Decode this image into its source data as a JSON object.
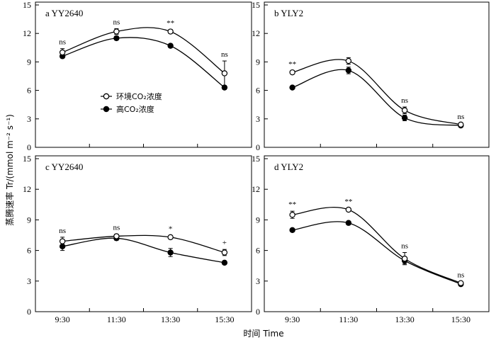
{
  "figure": {
    "ylabel": "蒸腾速率 Tr/(mmol m⁻² s⁻¹)",
    "xlabel": "时间 Time"
  },
  "legend": {
    "items": [
      {
        "label": "环境CO₂浓度",
        "marker": "open-circle"
      },
      {
        "label": "高CO₂浓度",
        "marker": "filled-circle"
      }
    ]
  },
  "colors": {
    "line": "#000000",
    "background": "#ffffff"
  },
  "chart_data": [
    {
      "type": "line",
      "panel": "a",
      "title": "a  YY2640",
      "categories": [
        "9:30",
        "11:30",
        "13:30",
        "15:30"
      ],
      "series": [
        {
          "name": "环境CO₂浓度",
          "values": [
            10.0,
            12.2,
            12.2,
            7.8
          ],
          "errors": [
            0.4,
            0.3,
            0.2,
            1.3
          ]
        },
        {
          "name": "高CO₂浓度",
          "values": [
            9.6,
            11.5,
            10.7,
            6.3
          ],
          "errors": [
            0.2,
            0.2,
            0.2,
            0.2
          ]
        }
      ],
      "significance": [
        "ns",
        "ns",
        "**",
        "ns"
      ],
      "ylim": [
        0,
        15
      ],
      "yticks": [
        0,
        3,
        6,
        9,
        12,
        15
      ],
      "legend": "center-left"
    },
    {
      "type": "line",
      "panel": "b",
      "title": "b  YLY2",
      "categories": [
        "9:30",
        "11:30",
        "13:30",
        "15:30"
      ],
      "series": [
        {
          "name": "环境CO₂浓度",
          "values": [
            7.9,
            9.1,
            3.9,
            2.4
          ],
          "errors": [
            0.15,
            0.35,
            0.35,
            0.15
          ]
        },
        {
          "name": "高CO₂浓度",
          "values": [
            6.3,
            8.1,
            3.1,
            2.3
          ],
          "errors": [
            0.15,
            0.35,
            0.3,
            0.1
          ]
        }
      ],
      "significance": [
        "**",
        "",
        "ns",
        "ns"
      ],
      "ylim": [
        0,
        15
      ],
      "yticks": [
        0,
        3,
        6,
        9,
        12,
        15
      ]
    },
    {
      "type": "line",
      "panel": "c",
      "title": "c  YY2640",
      "categories": [
        "9:30",
        "11:30",
        "13:30",
        "15:30"
      ],
      "series": [
        {
          "name": "环境CO₂浓度",
          "values": [
            6.9,
            7.4,
            7.3,
            5.8
          ],
          "errors": [
            0.4,
            0.2,
            0.15,
            0.3
          ]
        },
        {
          "name": "高CO₂浓度",
          "values": [
            6.4,
            7.2,
            5.8,
            4.8
          ],
          "errors": [
            0.4,
            0.2,
            0.4,
            0.1
          ]
        }
      ],
      "significance": [
        "ns",
        "ns",
        "*",
        "+"
      ],
      "ylim": [
        0,
        15
      ],
      "yticks": [
        0,
        3,
        6,
        9,
        12,
        15
      ]
    },
    {
      "type": "line",
      "panel": "d",
      "title": "d  YLY2",
      "categories": [
        "9:30",
        "11:30",
        "13:30",
        "15:30"
      ],
      "series": [
        {
          "name": "环境CO₂浓度",
          "values": [
            9.5,
            10.0,
            5.2,
            2.8
          ],
          "errors": [
            0.35,
            0.15,
            0.6,
            0.15
          ]
        },
        {
          "name": "高CO₂浓度",
          "values": [
            8.0,
            8.7,
            5.0,
            2.7
          ],
          "errors": [
            0.1,
            0.15,
            0.3,
            0.15
          ]
        }
      ],
      "significance": [
        "**",
        "**",
        "ns",
        "ns"
      ],
      "ylim": [
        0,
        15
      ],
      "yticks": [
        0,
        3,
        6,
        9,
        12,
        15
      ]
    }
  ]
}
